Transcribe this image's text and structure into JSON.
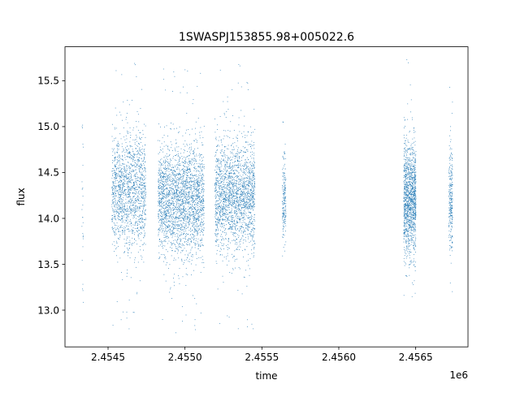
{
  "chart_data": {
    "type": "scatter",
    "title": "1SWASPJ153855.98+005022.6",
    "xlabel": "time",
    "ylabel": "flux",
    "x_offset_label": "1e6",
    "xlim": [
      2.45422,
      2.45684
    ],
    "ylim": [
      12.6,
      15.87
    ],
    "x_ticks": [
      2.4545,
      2.455,
      2.4555,
      2.456,
      2.4565
    ],
    "x_tick_labels": [
      "2.4545",
      "2.4550",
      "2.4555",
      "2.4560",
      "2.4565"
    ],
    "y_ticks": [
      13.0,
      13.5,
      14.0,
      14.5,
      15.0,
      15.5
    ],
    "y_tick_labels": [
      "13.0",
      "13.5",
      "14.0",
      "14.5",
      "15.0",
      "15.5"
    ],
    "grid": false,
    "marker_color": "#1f77b4",
    "series": [
      {
        "clusters": [
          {
            "x_center": 2.454335,
            "x_half_width": 5e-06,
            "y_mean": 14.2,
            "y_sd": 0.55,
            "y_min": 12.72,
            "y_max": 15.52,
            "count": 28
          },
          {
            "x_center": 2.454635,
            "x_half_width": 0.00011,
            "y_mean": 14.3,
            "y_sd": 0.32,
            "y_min": 12.72,
            "y_max": 15.72,
            "count": 1500
          },
          {
            "x_center": 2.454975,
            "x_half_width": 0.00015,
            "y_mean": 14.2,
            "y_sd": 0.3,
            "y_min": 12.75,
            "y_max": 15.75,
            "count": 2400
          },
          {
            "x_center": 2.455325,
            "x_half_width": 0.00013,
            "y_mean": 14.25,
            "y_sd": 0.3,
            "y_min": 12.72,
            "y_max": 15.72,
            "count": 2000
          },
          {
            "x_center": 2.455645,
            "x_half_width": 1.2e-05,
            "y_mean": 14.2,
            "y_sd": 0.22,
            "y_min": 13.35,
            "y_max": 15.3,
            "count": 180
          },
          {
            "x_center": 2.456462,
            "x_half_width": 4e-05,
            "y_mean": 14.2,
            "y_sd": 0.3,
            "y_min": 13.1,
            "y_max": 15.78,
            "count": 1300
          },
          {
            "x_center": 2.456728,
            "x_half_width": 1.2e-05,
            "y_mean": 14.2,
            "y_sd": 0.28,
            "y_min": 12.72,
            "y_max": 15.7,
            "count": 260
          }
        ]
      }
    ]
  }
}
